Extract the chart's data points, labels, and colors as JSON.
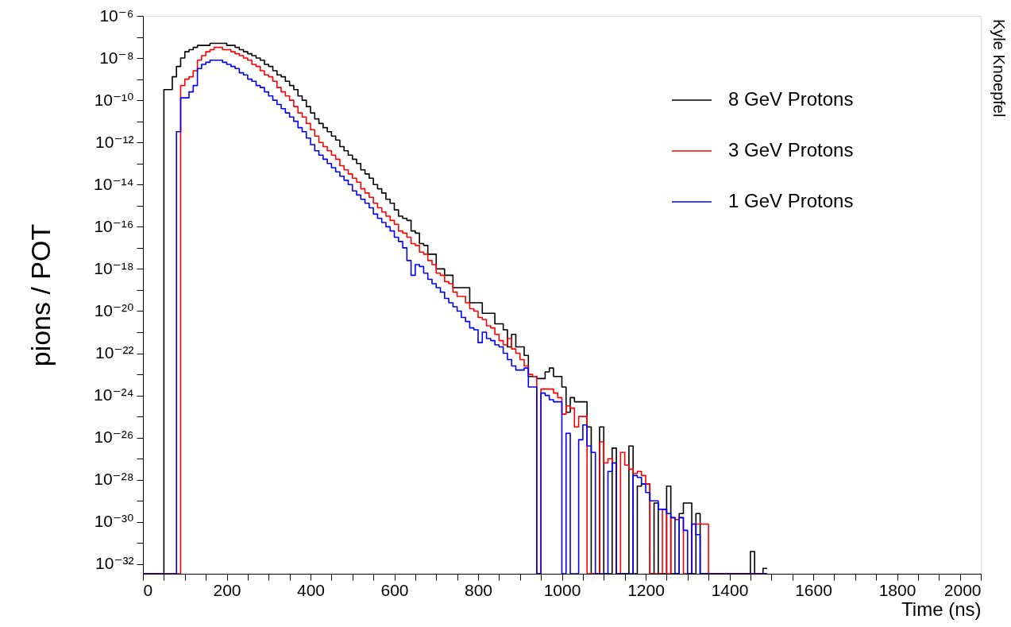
{
  "chart_data": {
    "type": "histogram",
    "log": true,
    "legend": "top right",
    "xlabel": "Time (ns)",
    "ylabel": "pions / POT",
    "annotations": [
      "Kyle Knoepfel"
    ],
    "xlim": [
      0,
      2000
    ],
    "ylim": [
      3.5e-33,
      1e-06
    ],
    "xticks": [
      0,
      {
        "value": 50,
        "label": null
      },
      {
        "value": 100,
        "label": null
      },
      {
        "value": 150,
        "label": null
      },
      200,
      {
        "value": 250,
        "label": null
      },
      {
        "value": 300,
        "label": null
      },
      {
        "value": 350,
        "label": null
      },
      400,
      {
        "value": 450,
        "label": null
      },
      {
        "value": 500,
        "label": null
      },
      {
        "value": 550,
        "label": null
      },
      600,
      {
        "value": 650,
        "label": null
      },
      {
        "value": 700,
        "label": null
      },
      {
        "value": 750,
        "label": null
      },
      800,
      {
        "value": 850,
        "label": null
      },
      {
        "value": 900,
        "label": null
      },
      {
        "value": 950,
        "label": null
      },
      1000,
      {
        "value": 1050,
        "label": null
      },
      {
        "value": 1100,
        "label": null
      },
      {
        "value": 1150,
        "label": null
      },
      1200,
      {
        "value": 1250,
        "label": null
      },
      {
        "value": 1300,
        "label": null
      },
      {
        "value": 1350,
        "label": null
      },
      1400,
      {
        "value": 1450,
        "label": null
      },
      {
        "value": 1500,
        "label": null
      },
      {
        "value": 1550,
        "label": null
      },
      1600,
      {
        "value": 1650,
        "label": null
      },
      {
        "value": 1700,
        "label": null
      },
      {
        "value": 1750,
        "label": null
      },
      1800,
      {
        "value": 1850,
        "label": null
      },
      {
        "value": 1900,
        "label": null
      },
      {
        "value": 1950,
        "label": null
      },
      2000
    ],
    "yticks": [
      {
        "value": 1e-06,
        "label": "10⁻⁶"
      },
      {
        "value": 1e-07,
        "label": null
      },
      {
        "value": 1e-08,
        "label": "10⁻⁸"
      },
      {
        "value": 1e-09,
        "label": null
      },
      {
        "value": 1e-10,
        "label": "10⁻¹⁰"
      },
      {
        "value": 1e-11,
        "label": null
      },
      {
        "value": 1e-12,
        "label": "10⁻¹²"
      },
      {
        "value": 1e-13,
        "label": null
      },
      {
        "value": 1e-14,
        "label": "10⁻¹⁴"
      },
      {
        "value": 1e-15,
        "label": null
      },
      {
        "value": 1e-16,
        "label": "10⁻¹⁶"
      },
      {
        "value": 1e-17,
        "label": null
      },
      {
        "value": 1e-18,
        "label": "10⁻¹⁸"
      },
      {
        "value": 1e-19,
        "label": null
      },
      {
        "value": 1e-20,
        "label": "10⁻²⁰"
      },
      {
        "value": 1e-21,
        "label": null
      },
      {
        "value": 1e-22,
        "label": "10⁻²²"
      },
      {
        "value": 1e-23,
        "label": null
      },
      {
        "value": 1e-24,
        "label": "10⁻²⁴"
      },
      {
        "value": 1e-25,
        "label": null
      },
      {
        "value": 1e-26,
        "label": "10⁻²⁶"
      },
      {
        "value": 1e-27,
        "label": null
      },
      {
        "value": 1e-28,
        "label": "10⁻²⁸"
      },
      {
        "value": 1e-29,
        "label": null
      },
      {
        "value": 1e-30,
        "label": "10⁻³⁰"
      },
      {
        "value": 1e-31,
        "label": null
      },
      {
        "value": 1e-32,
        "label": "10⁻³²"
      }
    ],
    "bins": [
      0,
      10,
      20,
      30,
      40,
      50,
      60,
      70,
      80,
      90,
      100,
      110,
      120,
      130,
      140,
      150,
      160,
      170,
      180,
      190,
      200,
      210,
      220,
      230,
      240,
      250,
      260,
      270,
      280,
      290,
      300,
      310,
      320,
      330,
      340,
      350,
      360,
      370,
      380,
      390,
      400,
      410,
      420,
      430,
      440,
      450,
      460,
      470,
      480,
      490,
      500,
      510,
      520,
      530,
      540,
      550,
      560,
      570,
      580,
      590,
      600,
      610,
      620,
      630,
      640,
      650,
      660,
      670,
      680,
      690,
      700,
      710,
      720,
      730,
      740,
      750,
      760,
      770,
      780,
      790,
      800,
      810,
      820,
      830,
      840,
      850,
      860,
      870,
      880,
      890,
      900,
      910,
      920,
      930,
      940,
      950,
      960,
      970,
      980,
      990,
      1000,
      1010,
      1020,
      1030,
      1040,
      1050,
      1060,
      1070,
      1080,
      1090,
      1100,
      1110,
      1120,
      1130,
      1140,
      1150,
      1160,
      1170,
      1180,
      1190,
      1200,
      1210,
      1220,
      1230,
      1240,
      1250,
      1260,
      1270,
      1280,
      1290,
      1300,
      1310,
      1320,
      1330,
      1340,
      1350,
      1360,
      1370,
      1380,
      1390,
      1400,
      1410,
      1420,
      1430,
      1440,
      1450,
      1460,
      1470,
      1480,
      1490
    ],
    "series": [
      {
        "name": "8 GeV Protons",
        "color": "#000000",
        "values": [
          null,
          null,
          null,
          null,
          null,
          3.2e-10,
          3.2e-10,
          1.3e-09,
          4e-09,
          1e-08,
          2e-08,
          2.5e-08,
          3.2e-08,
          4e-08,
          4e-08,
          4e-08,
          5e-08,
          5e-08,
          5e-08,
          5e-08,
          4e-08,
          4e-08,
          3.2e-08,
          2.5e-08,
          2e-08,
          1.6e-08,
          1.3e-08,
          1e-08,
          7.9e-09,
          5e-09,
          4e-09,
          2.5e-09,
          1.6e-09,
          1.3e-09,
          7.9e-10,
          5e-10,
          3.2e-10,
          1.6e-10,
          1e-10,
          5e-11,
          2.5e-11,
          1.3e-11,
          7.9e-12,
          5e-12,
          3.2e-12,
          2e-12,
          1.3e-12,
          6.3e-13,
          4e-13,
          2.5e-13,
          1.6e-13,
          1e-13,
          5e-14,
          3.2e-14,
          2e-14,
          1e-14,
          6.3e-15,
          4e-15,
          2e-15,
          1.3e-15,
          6.3e-16,
          3.2e-16,
          2.5e-16,
          2e-16,
          6.3e-17,
          5e-17,
          1.6e-17,
          1.3e-17,
          5e-18,
          5e-18,
          1e-18,
          1e-18,
          5e-19,
          5e-19,
          1.3e-19,
          1.3e-19,
          1.3e-19,
          1.3e-19,
          2.5e-20,
          2.5e-20,
          2.5e-20,
          7.9e-21,
          7.9e-21,
          7.9e-21,
          2.5e-21,
          2.5e-21,
          1.3e-21,
          2e-22,
          7.9e-22,
          2e-22,
          2e-22,
          7.9e-23,
          7.9e-24,
          7.9e-24,
          6.3e-24,
          6.3e-24,
          1.3e-23,
          2e-23,
          7.9e-24,
          7.9e-24,
          2.5e-24,
          1.6e-25,
          7.9e-25,
          5e-25,
          5e-25,
          5e-25,
          3.2e-26,
          null,
          null,
          3.2e-26,
          null,
          null,
          3.2e-27,
          null,
          null,
          null,
          4e-27,
          null,
          5e-29,
          6.3e-29,
          6.3e-29,
          null,
          7.9e-30,
          null,
          null,
          5e-29,
          null,
          null,
          2.5e-30,
          7.9e-30,
          7.9e-30,
          null,
          2.5e-30,
          null,
          null,
          null,
          null,
          null,
          null,
          null,
          null,
          null,
          null,
          null,
          null,
          4e-32,
          null,
          null,
          6.3e-33
        ]
      },
      {
        "name": "3 GeV Protons",
        "color": "#ff0000",
        "values": [
          null,
          null,
          null,
          null,
          null,
          null,
          null,
          null,
          null,
          5e-10,
          1e-09,
          1.3e-09,
          2.5e-09,
          7.9e-09,
          1.3e-08,
          2e-08,
          2.5e-08,
          3.2e-08,
          3.2e-08,
          2.5e-08,
          2.5e-08,
          2e-08,
          1.6e-08,
          1.3e-08,
          1e-08,
          7.9e-09,
          5e-09,
          4e-09,
          2.5e-09,
          1.6e-09,
          1.3e-09,
          7.9e-10,
          4e-10,
          2.5e-10,
          1.6e-10,
          1e-10,
          5e-11,
          2.5e-11,
          1.6e-11,
          7.9e-12,
          4e-12,
          2e-12,
          1e-12,
          6.3e-13,
          4e-13,
          2.5e-13,
          1.6e-13,
          7.9e-14,
          5e-14,
          3.2e-14,
          2e-14,
          1.3e-14,
          6.3e-15,
          4e-15,
          2.5e-15,
          1.3e-15,
          7.9e-16,
          5e-16,
          3.2e-16,
          2e-16,
          1.3e-16,
          6.3e-17,
          5e-17,
          3.2e-17,
          1.6e-17,
          1.3e-17,
          6.3e-18,
          5e-18,
          2.5e-18,
          1.6e-18,
          6.3e-19,
          5e-19,
          2.5e-19,
          2e-19,
          7.9e-20,
          5e-20,
          5e-20,
          2.5e-20,
          1.3e-20,
          1e-20,
          5e-21,
          4e-21,
          2e-21,
          1.6e-21,
          7.9e-22,
          4e-22,
          2.5e-22,
          5e-22,
          1.6e-22,
          1e-22,
          5e-23,
          2.5e-23,
          1e-23,
          7.9e-24,
          null,
          2e-24,
          2e-24,
          2e-24,
          1.3e-24,
          7.9e-25,
          1.3e-25,
          3.2e-25,
          2.5e-25,
          3.2e-26,
          1e-25,
          1e-25,
          null,
          null,
          null,
          6.3e-27,
          6.3e-28,
          1e-27,
          6.3e-28,
          null,
          2e-27,
          5e-28,
          3.2e-28,
          2e-28,
          2.5e-28,
          1.6e-28,
          6.3e-29,
          null,
          null,
          null,
          4e-30,
          null,
          1.6e-30,
          1.3e-30,
          1.6e-30,
          null,
          null,
          7.9e-31,
          7.9e-31,
          7.9e-31,
          7.9e-31,
          null,
          null,
          null,
          null,
          null,
          null,
          null,
          null,
          null,
          null,
          null,
          null,
          null,
          null
        ]
      },
      {
        "name": "1 GeV Protons",
        "color": "#0000ff",
        "values": [
          null,
          null,
          null,
          null,
          null,
          null,
          null,
          null,
          3.2e-12,
          1.3e-10,
          1.3e-10,
          2.5e-10,
          5e-10,
          3.2e-09,
          5e-09,
          6.3e-09,
          7.9e-09,
          7.9e-09,
          7.9e-09,
          6.3e-09,
          5e-09,
          4e-09,
          3.2e-09,
          2e-09,
          1.6e-09,
          1e-09,
          7.9e-10,
          5e-10,
          4e-10,
          2.5e-10,
          1.6e-10,
          1e-10,
          6.3e-11,
          4e-11,
          2.5e-11,
          1.6e-11,
          1e-11,
          5e-12,
          3.2e-12,
          1.6e-12,
          7.9e-13,
          4e-13,
          2.5e-13,
          1.6e-13,
          1e-13,
          6.3e-14,
          4e-14,
          2.5e-14,
          1.6e-14,
          1e-14,
          5e-15,
          3.2e-15,
          2e-15,
          1.3e-15,
          7.9e-16,
          4e-16,
          2.5e-16,
          1.6e-16,
          1e-16,
          6.3e-17,
          3.2e-17,
          2e-17,
          1e-17,
          2.5e-18,
          5e-19,
          1.6e-18,
          1.3e-18,
          6.3e-19,
          3.2e-19,
          2e-19,
          1.3e-19,
          7.9e-20,
          4e-20,
          2.5e-20,
          1.6e-20,
          1e-20,
          5e-21,
          3.2e-21,
          1.6e-21,
          1.3e-21,
          3.2e-22,
          1e-21,
          5e-22,
          4e-22,
          2.5e-22,
          2e-22,
          1e-22,
          5e-23,
          2.5e-23,
          1.6e-23,
          1.6e-23,
          2e-23,
          2.5e-24,
          2.5e-24,
          null,
          1.3e-24,
          1e-24,
          6.3e-25,
          5e-25,
          5e-25,
          null,
          1.6e-26,
          null,
          null,
          7.9e-27,
          4e-26,
          4e-27,
          2e-27,
          null,
          null,
          null,
          2.5e-28,
          6.3e-28,
          null,
          null,
          null,
          null,
          1.6e-28,
          1.3e-28,
          6.3e-29,
          2.5e-29,
          1e-29,
          1e-29,
          4e-30,
          4e-30,
          2.5e-30,
          1.6e-30,
          null,
          1.6e-30,
          4e-31,
          null,
          7.9e-31,
          2.5e-31,
          null,
          null,
          null,
          null,
          null,
          null,
          null,
          null,
          null,
          null,
          null,
          null,
          null,
          null,
          null,
          null
        ]
      }
    ]
  }
}
